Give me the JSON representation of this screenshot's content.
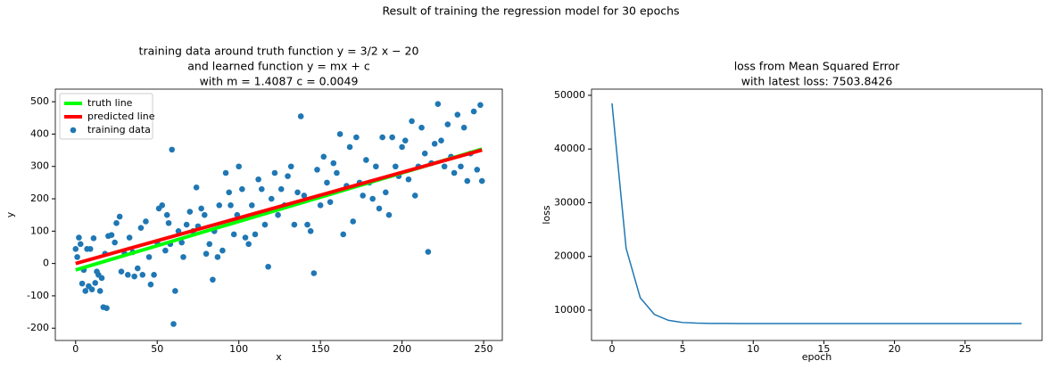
{
  "title": "Result of training the regression model for 30 epochs",
  "chart_data": [
    {
      "type": "scatter",
      "title": [
        "training data around truth function y = 3/2 x − 20",
        "and learned function y = mx + c",
        "with m = 1.4087 c = 0.0049"
      ],
      "x_label": "x",
      "y_label": "y",
      "xlim": [
        -12.45,
        261.45
      ],
      "ylim": [
        -238,
        539
      ],
      "xticks": [
        0,
        50,
        100,
        150,
        200,
        250
      ],
      "yticks": [
        -200,
        -100,
        0,
        100,
        200,
        300,
        400,
        500
      ],
      "grid": false,
      "legend": "upper left",
      "series": [
        {
          "name": "truth line",
          "type": "line",
          "color": "#00ff00",
          "x": [
            0,
            249
          ],
          "values": [
            -20,
            353.5
          ]
        },
        {
          "name": "predicted line",
          "type": "line",
          "color": "#ff0000",
          "x": [
            0,
            249
          ],
          "values": [
            0.0049,
            350.77
          ]
        },
        {
          "name": "training data",
          "type": "scatter",
          "color": "#1f77b4",
          "x": [
            0,
            1,
            2,
            3,
            4,
            5,
            6,
            7,
            8,
            9,
            10,
            11,
            12,
            13,
            14,
            15,
            16,
            17,
            18,
            19,
            20,
            22,
            24,
            25,
            27,
            28,
            30,
            32,
            33,
            35,
            36,
            38,
            40,
            41,
            43,
            45,
            46,
            48,
            50,
            51,
            53,
            55,
            56,
            57,
            58,
            59,
            60,
            61,
            63,
            65,
            66,
            68,
            70,
            72,
            74,
            75,
            77,
            79,
            80,
            82,
            84,
            85,
            87,
            88,
            90,
            92,
            94,
            95,
            97,
            99,
            100,
            102,
            104,
            106,
            108,
            110,
            112,
            114,
            116,
            118,
            120,
            122,
            124,
            126,
            128,
            130,
            132,
            134,
            136,
            138,
            140,
            142,
            144,
            146,
            148,
            150,
            152,
            154,
            156,
            158,
            160,
            162,
            164,
            166,
            168,
            170,
            172,
            174,
            176,
            178,
            180,
            182,
            184,
            186,
            188,
            190,
            192,
            194,
            196,
            198,
            200,
            202,
            204,
            206,
            208,
            210,
            212,
            214,
            216,
            218,
            220,
            222,
            224,
            226,
            228,
            230,
            232,
            234,
            236,
            238,
            240,
            242,
            244,
            246,
            248,
            249
          ],
          "values": [
            45,
            20,
            80,
            60,
            -62,
            -20,
            -85,
            45,
            -70,
            45,
            -80,
            78,
            -60,
            -25,
            -35,
            -85,
            -45,
            -135,
            30,
            -138,
            85,
            88,
            65,
            125,
            145,
            -25,
            30,
            -35,
            80,
            35,
            -40,
            -15,
            110,
            -35,
            130,
            20,
            -65,
            -35,
            65,
            170,
            180,
            40,
            150,
            125,
            60,
            352,
            -187,
            -85,
            100,
            65,
            20,
            120,
            160,
            100,
            235,
            115,
            170,
            150,
            30,
            60,
            -50,
            100,
            20,
            180,
            40,
            280,
            220,
            180,
            90,
            150,
            300,
            230,
            80,
            60,
            180,
            90,
            260,
            230,
            120,
            -10,
            200,
            280,
            150,
            230,
            180,
            270,
            300,
            120,
            220,
            455,
            210,
            120,
            100,
            -30,
            290,
            180,
            330,
            250,
            190,
            310,
            280,
            400,
            90,
            240,
            360,
            130,
            390,
            250,
            210,
            320,
            250,
            200,
            300,
            170,
            390,
            220,
            150,
            390,
            300,
            270,
            360,
            380,
            260,
            440,
            210,
            300,
            420,
            340,
            36,
            310,
            370,
            493,
            380,
            300,
            430,
            330,
            280,
            460,
            300,
            420,
            255,
            340,
            470,
            290,
            490,
            255
          ]
        }
      ]
    },
    {
      "type": "line",
      "title": [
        "loss from Mean Squared Error",
        "with latest loss: 7503.8426"
      ],
      "x_label": "epoch",
      "y_label": "loss",
      "xlim": [
        -1.45,
        30.45
      ],
      "ylim": [
        4350,
        51150
      ],
      "xticks": [
        0,
        5,
        10,
        15,
        20,
        25
      ],
      "yticks": [
        10000,
        20000,
        30000,
        40000,
        50000
      ],
      "grid": false,
      "series": [
        {
          "type": "line",
          "color": "#1f77b4",
          "x": [
            0,
            1,
            2,
            3,
            4,
            5,
            6,
            7,
            8,
            9,
            10,
            11,
            12,
            13,
            14,
            15,
            16,
            17,
            18,
            19,
            20,
            21,
            22,
            23,
            24,
            25,
            26,
            27,
            28,
            29
          ],
          "values": [
            48500,
            21500,
            12300,
            9200,
            8100,
            7700,
            7580,
            7530,
            7515,
            7508,
            7506,
            7505,
            7504.5,
            7504.2,
            7504,
            7504,
            7504,
            7504,
            7504,
            7503.9,
            7503.9,
            7503.9,
            7503.9,
            7503.9,
            7503.9,
            7503.9,
            7503.9,
            7503.9,
            7503.85,
            7503.8426
          ]
        }
      ]
    }
  ]
}
